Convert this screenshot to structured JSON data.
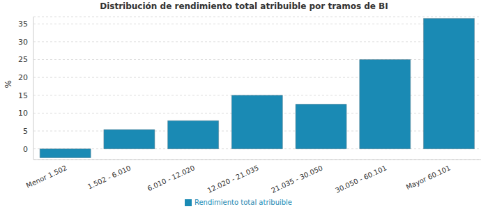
{
  "chart_data": {
    "type": "bar",
    "title": "Distribución de rendimiento total atribuible por tramos de BI",
    "y_label": "%",
    "categories": [
      "Menor 1.502",
      "1.502 - 6.010",
      "6.010 - 12.020",
      "12.020 - 21.035",
      "21.035 - 30.050",
      "30.050 - 60.101",
      "Mayor 60.101"
    ],
    "series": [
      {
        "name": "Rendimiento total atribuible",
        "color": "#1a8ab4",
        "values": [
          -2.5,
          5.4,
          7.9,
          15.0,
          12.5,
          25.0,
          36.5
        ]
      }
    ],
    "ylim": [
      -3,
      37
    ],
    "yticks": [
      0,
      5,
      10,
      15,
      20,
      25,
      30,
      35
    ],
    "grid": true,
    "legend": "bottom"
  }
}
